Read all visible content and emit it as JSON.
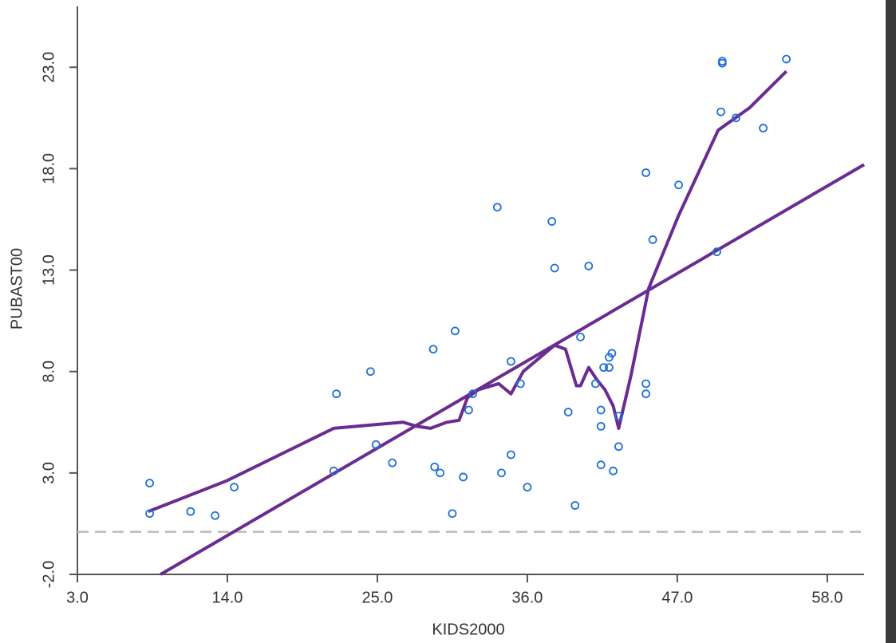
{
  "chart_data": {
    "type": "scatter",
    "xlabel": "KIDS2000",
    "ylabel": "PUBAST00",
    "xlim": [
      3,
      60.7
    ],
    "ylim": [
      -2,
      26
    ],
    "xticks": [
      {
        "value": 3,
        "label": "3.0"
      },
      {
        "value": 14,
        "label": "14.0"
      },
      {
        "value": 25,
        "label": "25.0"
      },
      {
        "value": 36,
        "label": "36.0"
      },
      {
        "value": 47,
        "label": "47.0"
      },
      {
        "value": 58,
        "label": "58.0"
      }
    ],
    "yticks": [
      {
        "value": -2,
        "label": "-2.0"
      },
      {
        "value": 3,
        "label": "3.0"
      },
      {
        "value": 8,
        "label": "8.0"
      },
      {
        "value": 13,
        "label": "13.0"
      },
      {
        "value": 18,
        "label": "18.0"
      },
      {
        "value": 23,
        "label": "23.0"
      }
    ],
    "series": [
      {
        "color": "#1e6fd9",
        "x": [
          8.3,
          8.3,
          11.3,
          13.1,
          14.5,
          21.8,
          22.0,
          24.5,
          24.9,
          26.1,
          29.1,
          29.2,
          29.6,
          30.5,
          30.7,
          31.3,
          31.7,
          32.0,
          33.8,
          34.1,
          34.8,
          34.8,
          35.5,
          36.0,
          37.8,
          38.0,
          39.0,
          39.5,
          39.9,
          40.5,
          41.0,
          41.4,
          41.4,
          41.4,
          41.6,
          42.0,
          42.0,
          42.2,
          42.3,
          42.7,
          42.7,
          44.7,
          44.7,
          44.7,
          45.2,
          47.1,
          49.9,
          50.2,
          50.3,
          50.3,
          51.3,
          53.3,
          55.0
        ],
        "values": [
          2.5,
          1.0,
          1.1,
          0.9,
          2.3,
          3.1,
          6.9,
          8.0,
          4.4,
          3.5,
          9.1,
          3.3,
          3.0,
          1.0,
          10.0,
          2.8,
          6.1,
          6.9,
          16.1,
          3.0,
          8.5,
          3.9,
          7.4,
          2.3,
          15.4,
          13.1,
          6.0,
          1.4,
          9.7,
          13.2,
          7.4,
          6.1,
          5.3,
          3.4,
          8.2,
          8.2,
          8.7,
          8.9,
          3.1,
          4.3,
          5.8,
          17.8,
          7.4,
          6.9,
          14.5,
          17.2,
          13.9,
          20.8,
          23.3,
          23.2,
          20.5,
          20.0,
          23.4
        ]
      }
    ],
    "lines": [
      {
        "color": "#6a2c91",
        "x": [
          9.1,
          60.7
        ],
        "values": [
          -2,
          18.2
        ]
      },
      {
        "color": "#6a2c91",
        "x": [
          8.2,
          13.9,
          21.8,
          25.1,
          26.9,
          27.9,
          28.9,
          30.1,
          31.0,
          31.6,
          32.4,
          33.9,
          34.8,
          35.7,
          38.0,
          38.8,
          39.6,
          39.9,
          40.5,
          41.1,
          41.7,
          42.3,
          42.7,
          43.6,
          44.9,
          47.1,
          50.0,
          52.3,
          55.0
        ],
        "values": [
          1.1,
          2.6,
          5.2,
          5.4,
          5.5,
          5.3,
          5.2,
          5.5,
          5.6,
          6.7,
          7.1,
          7.4,
          6.9,
          8.0,
          9.3,
          9.1,
          7.3,
          7.3,
          8.2,
          7.6,
          7.1,
          6.3,
          5.2,
          7.8,
          12.1,
          15.7,
          19.9,
          21.0,
          22.8
        ]
      }
    ],
    "hlines": [
      {
        "value": 0.1,
        "color": "#bbbbbb",
        "dash": true
      }
    ]
  }
}
